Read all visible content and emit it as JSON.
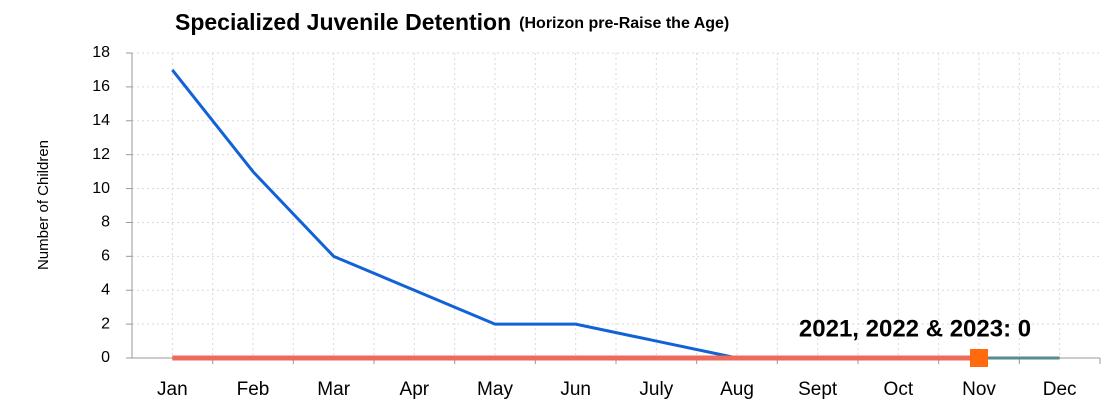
{
  "chart_data": {
    "type": "line",
    "title": "Specialized Juvenile Detention",
    "subtitle": "(Horizon pre-Raise the Age)",
    "y_label": "Number of Children",
    "annotation": "2021, 2022 & 2023: 0",
    "categories": [
      "Jan",
      "Feb",
      "Mar",
      "Apr",
      "May",
      "Jun",
      "July",
      "Aug",
      "Sept",
      "Oct",
      "Nov",
      "Dec"
    ],
    "series": [
      {
        "color": "#5a8a8a",
        "width": 3,
        "values": [
          0,
          0,
          0,
          0,
          0,
          0,
          0,
          0,
          0,
          0,
          0,
          0
        ]
      },
      {
        "color": "#1162d6",
        "width": 3,
        "values": [
          17,
          11,
          6,
          4,
          2,
          2,
          1,
          0,
          null,
          null,
          null,
          null
        ]
      },
      {
        "color": "#ee6a5a",
        "width": 5,
        "values": [
          0,
          0,
          0,
          0,
          0,
          0,
          0,
          0,
          0,
          0,
          0,
          null
        ],
        "last_point_marker": "#ff6a0e"
      }
    ],
    "ylim": [
      0,
      18
    ],
    "yticks": [
      0,
      2,
      4,
      6,
      8,
      10,
      12,
      14,
      16,
      18
    ],
    "grid": true
  }
}
